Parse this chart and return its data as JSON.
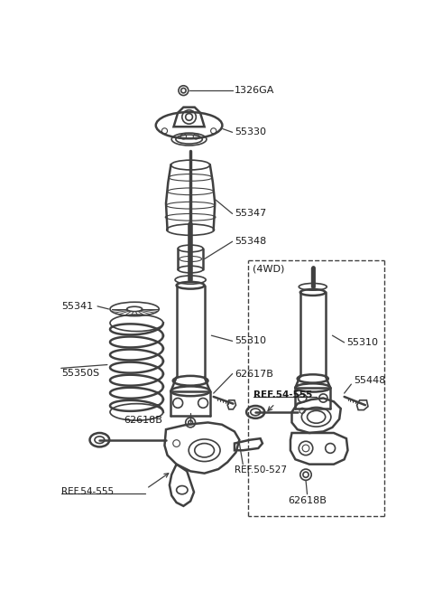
{
  "bg_color": "#ffffff",
  "line_color": "#404040",
  "label_color": "#1a1a1a",
  "fig_w": 4.8,
  "fig_h": 6.55,
  "dpi": 100,
  "xlim": [
    0,
    480
  ],
  "ylim": [
    0,
    655
  ]
}
